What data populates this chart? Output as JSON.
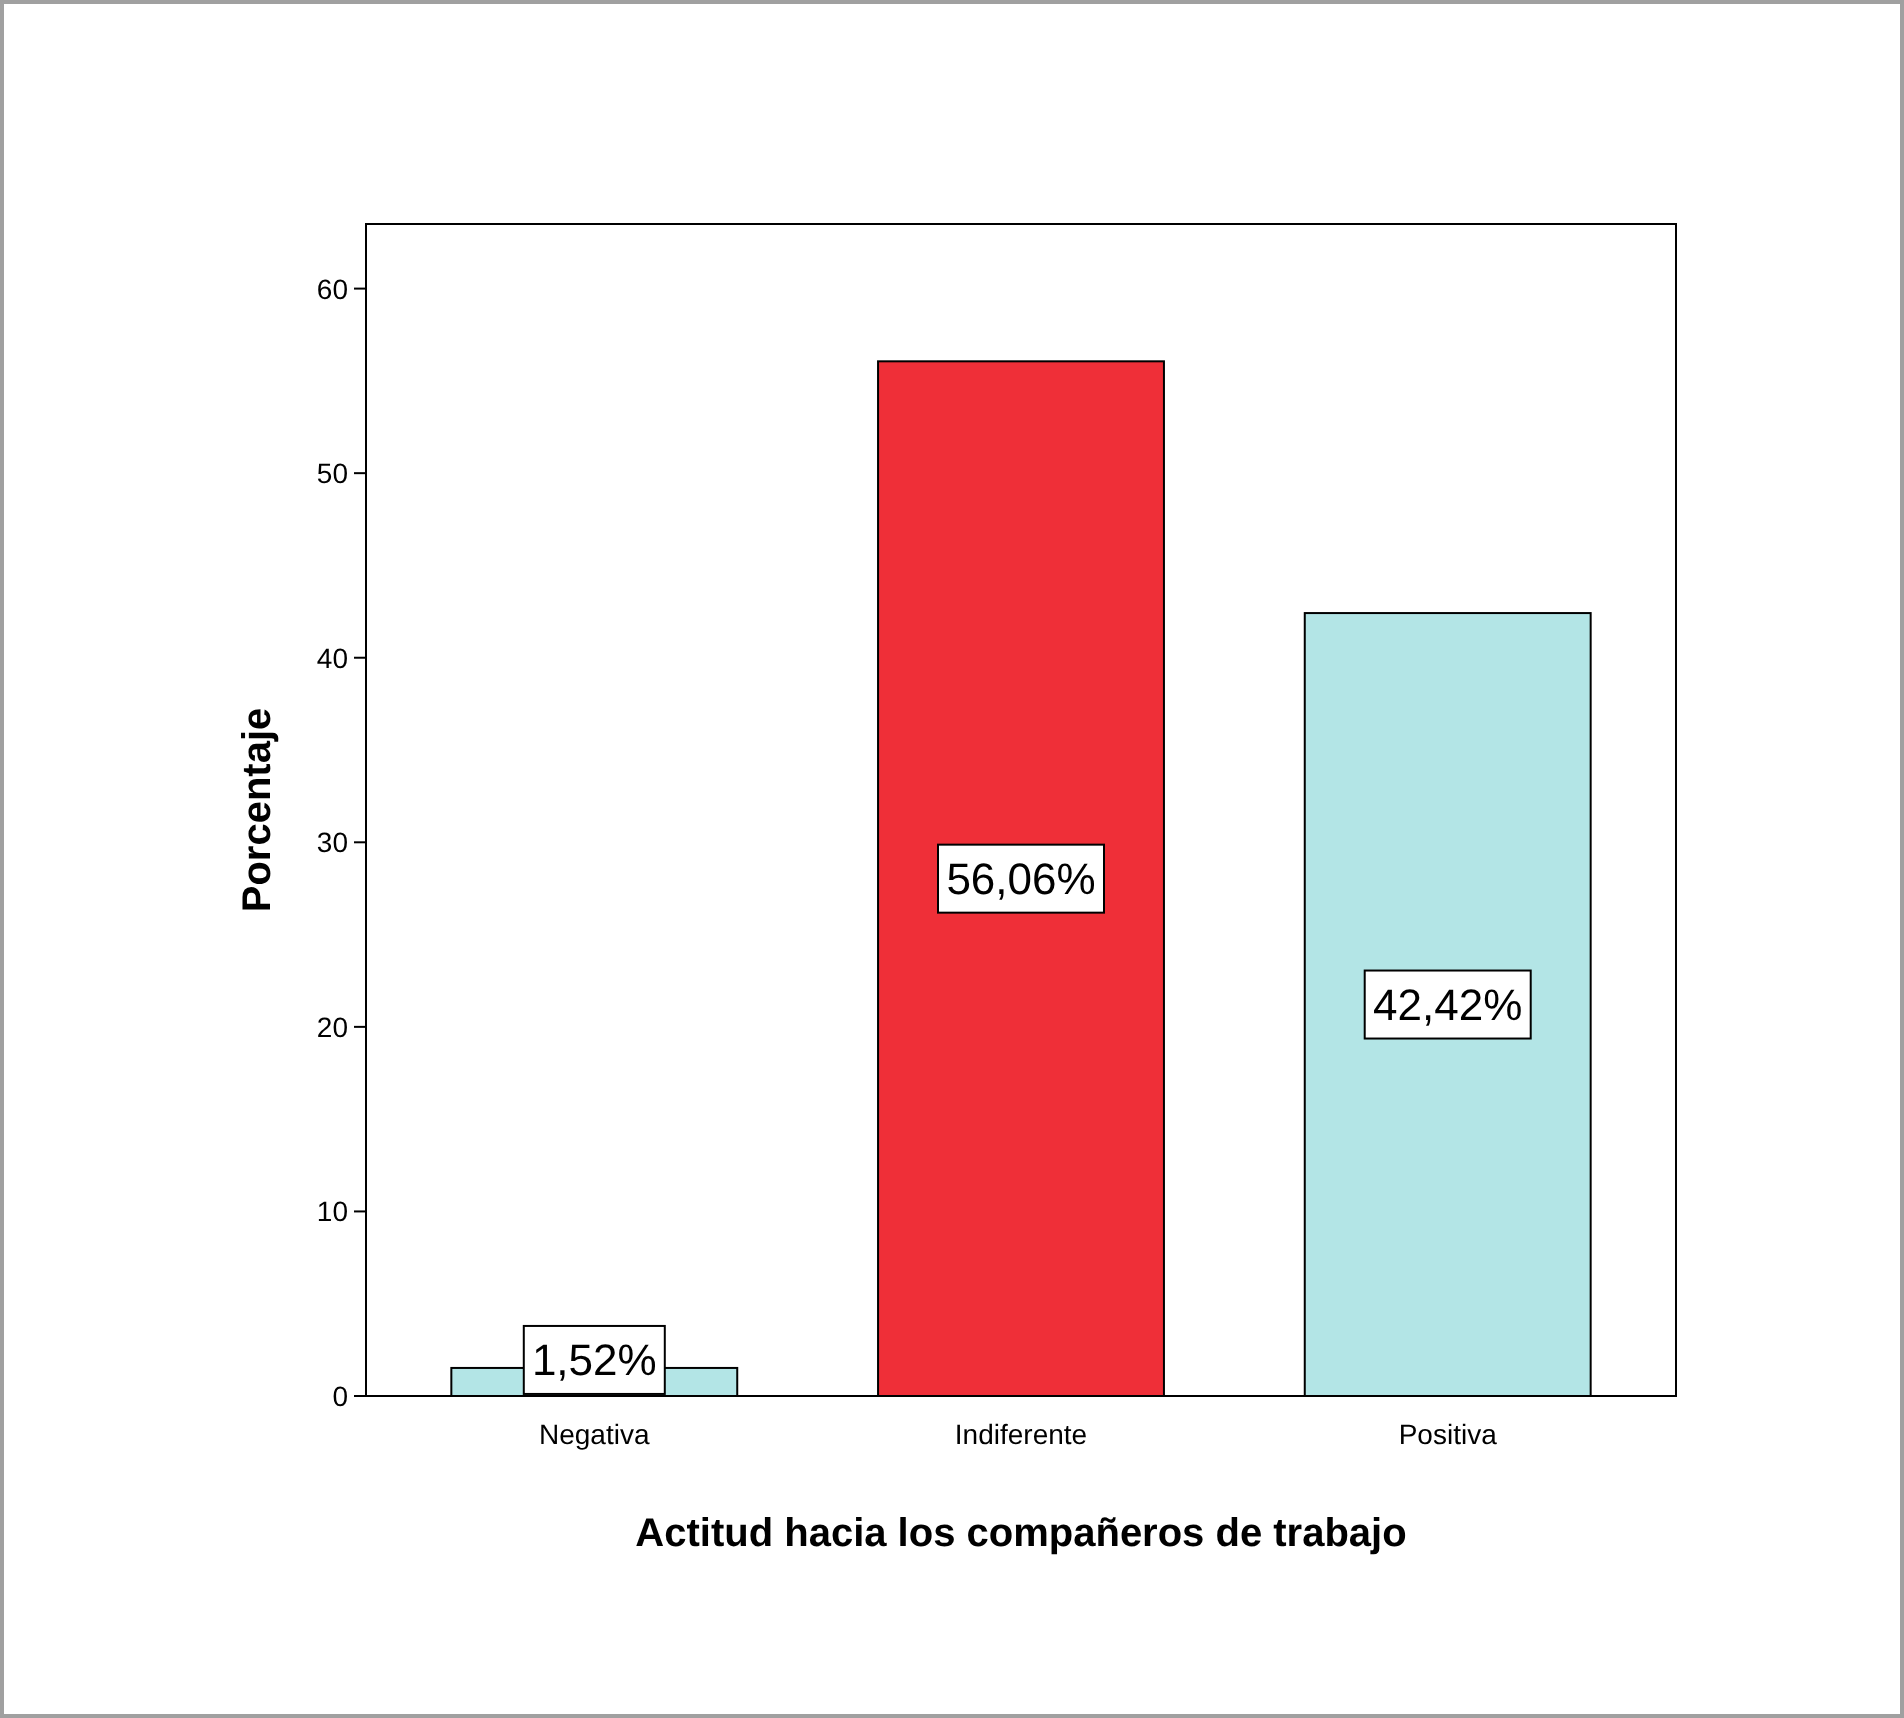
{
  "chart_data": {
    "type": "bar",
    "xlabel": "Actitud hacia los compañeros de trabajo",
    "ylabel": "Porcentaje",
    "categories": [
      "Negativa",
      "Indiferente",
      "Positiva"
    ],
    "values": [
      1.52,
      56.06,
      42.42
    ],
    "colors": [
      "#b3e5e6",
      "#ef2f38",
      "#b3e5e6"
    ],
    "value_labels": [
      "1,52%",
      "56,06%",
      "42,42%"
    ],
    "ylim": [
      0,
      63.5
    ],
    "yticks": [
      0,
      10,
      20,
      30,
      40,
      50,
      60
    ]
  }
}
